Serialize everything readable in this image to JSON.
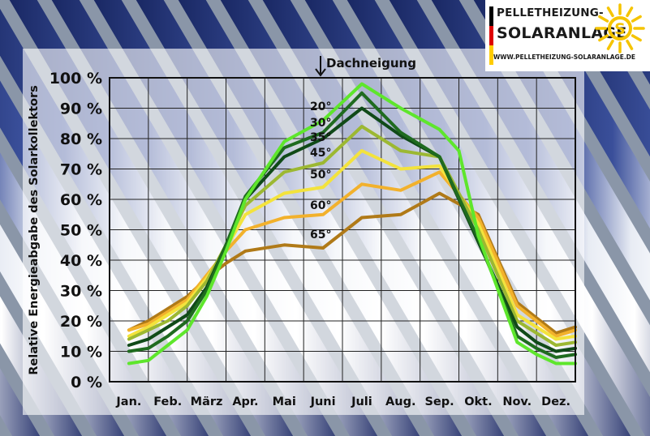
{
  "logo": {
    "line1": "Pelletheizung-",
    "line2": "Solaranlage",
    "url": "www.pelletheizung-solaranlage.de",
    "sun_letter": "S"
  },
  "colors": {
    "flag_black": "#000000",
    "flag_red": "#dd0000",
    "flag_gold": "#ffcc00",
    "sun": "#f5c400"
  },
  "chart_data": {
    "type": "line",
    "title": "",
    "top_annotation": "Dachneigung",
    "xlabel": "",
    "ylabel": "Relative Energieabgabe des Solarkollektors",
    "categories": [
      "Jan.",
      "Feb.",
      "März",
      "Apr.",
      "Mai",
      "Juni",
      "Juli",
      "Aug.",
      "Sep.",
      "Okt.",
      "Nov.",
      "Dez."
    ],
    "y_ticks": [
      "0 %",
      "10 %",
      "20 %",
      "30 %",
      "40 %",
      "50 %",
      "60 %",
      "70 %",
      "80 %",
      "90 %",
      "100 %"
    ],
    "ylim": [
      0,
      100
    ],
    "grid": true,
    "series": [
      {
        "name": "20°",
        "color": "#5ee62c",
        "values": [
          6,
          7,
          12,
          17,
          28,
          43,
          60,
          79,
          86,
          98,
          90,
          83,
          76,
          48,
          13,
          9,
          6,
          6
        ],
        "x": [
          0,
          0.5,
          1,
          1.5,
          2,
          2.5,
          3,
          4,
          5,
          6,
          7,
          8,
          8.5,
          9,
          10,
          10.5,
          11,
          11.5
        ]
      },
      {
        "name": "30°",
        "color": "#1f6b1f",
        "values": [
          10,
          11,
          15,
          20,
          30,
          45,
          61,
          77,
          82,
          95,
          82,
          74,
          47,
          15,
          11,
          8,
          9
        ],
        "x": [
          0,
          0.5,
          1,
          1.5,
          2,
          2.5,
          3,
          4,
          5,
          6,
          7,
          8,
          9,
          10,
          10.5,
          11,
          11.5
        ]
      },
      {
        "name": "35°",
        "color": "#104a18",
        "values": [
          12,
          14,
          18,
          22,
          31,
          45,
          60,
          74,
          80,
          90,
          81,
          74,
          46,
          18,
          13,
          10,
          11
        ],
        "x": [
          0,
          0.5,
          1,
          1.5,
          2,
          2.5,
          3,
          4,
          5,
          6,
          7,
          8,
          9,
          10,
          10.5,
          11,
          11.5
        ]
      },
      {
        "name": "45°",
        "color": "#9cb832",
        "values": [
          14,
          17,
          20,
          25,
          33,
          45,
          58,
          69,
          72,
          84,
          76,
          74,
          50,
          20,
          16,
          12,
          13
        ],
        "x": [
          0,
          0.5,
          1,
          1.5,
          2,
          2.5,
          3,
          4,
          5,
          6,
          7,
          8,
          9,
          10,
          10.5,
          11,
          11.5
        ]
      },
      {
        "name": "50°",
        "color": "#f3e33c",
        "values": [
          15,
          18,
          22,
          26,
          34,
          44,
          55,
          62,
          64,
          76,
          70,
          71,
          52,
          22,
          18,
          14,
          15
        ],
        "x": [
          0,
          0.5,
          1,
          1.5,
          2,
          2.5,
          3,
          4,
          5,
          6,
          7,
          8,
          9,
          10,
          10.5,
          11,
          11.5
        ]
      },
      {
        "name": "60°",
        "color": "#f2b12c",
        "values": [
          17,
          19,
          23,
          27,
          35,
          43,
          50,
          54,
          55,
          65,
          63,
          69,
          54,
          25,
          20,
          15,
          17
        ],
        "x": [
          0,
          0.5,
          1,
          1.5,
          2,
          2.5,
          3,
          4,
          5,
          6,
          7,
          8,
          9,
          10,
          10.5,
          11,
          11.5
        ]
      },
      {
        "name": "65°",
        "color": "#b07a18",
        "values": [
          17,
          20,
          24,
          28,
          34,
          39,
          43,
          45,
          44,
          54,
          55,
          62,
          55,
          26,
          21,
          16,
          18
        ],
        "x": [
          0,
          0.5,
          1,
          1.5,
          2,
          2.5,
          3,
          4,
          5,
          6,
          7,
          8,
          9,
          10,
          10.5,
          11,
          11.5
        ]
      }
    ]
  }
}
